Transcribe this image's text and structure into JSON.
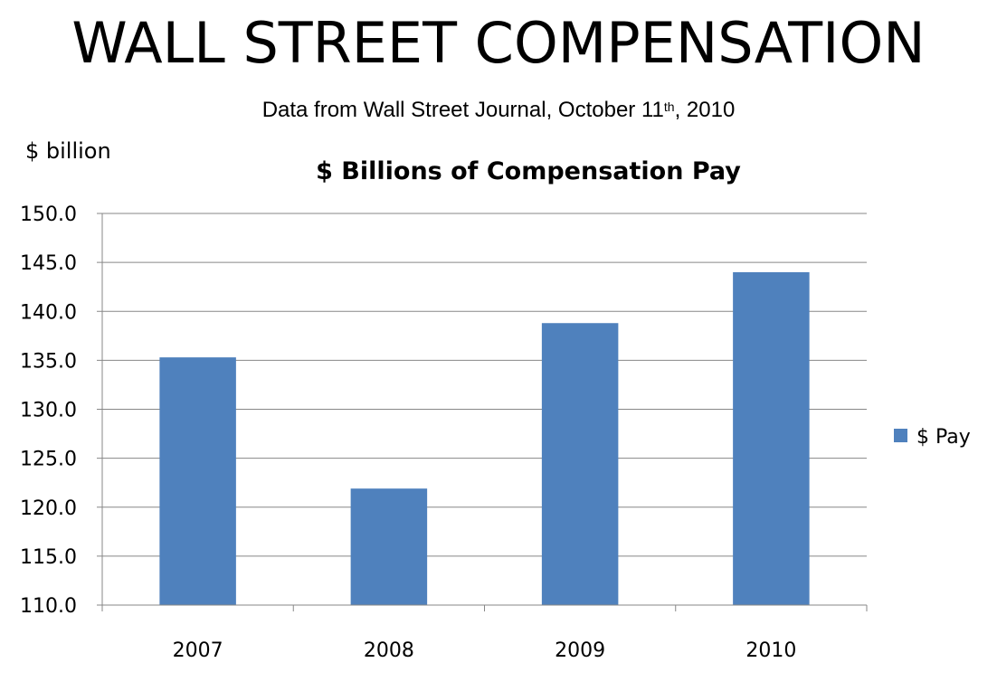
{
  "slide": {
    "title": "WALL STREET COMPENSATION",
    "subtitle_main": "Data from Wall Street Journal, October 11",
    "subtitle_sup": "th",
    "subtitle_end": ", 2010",
    "unit_label": "$ billion"
  },
  "chart_data": {
    "type": "bar",
    "title": "$ Billions of Compensation Pay",
    "xlabel": "",
    "ylabel": "",
    "categories": [
      "2007",
      "2008",
      "2009",
      "2010"
    ],
    "series": [
      {
        "name": "$ Pay",
        "values": [
          135.3,
          121.9,
          138.8,
          144.0
        ],
        "color": "#4F81BD"
      }
    ],
    "ylim": [
      110,
      150
    ],
    "ytick_step": 5,
    "ytick_labels": [
      "110.0",
      "115.0",
      "120.0",
      "125.0",
      "130.0",
      "135.0",
      "140.0",
      "145.0",
      "150.0"
    ],
    "grid": true,
    "legend_position": "right",
    "colors": {
      "gridline": "#878787",
      "axis": "#878787"
    }
  }
}
